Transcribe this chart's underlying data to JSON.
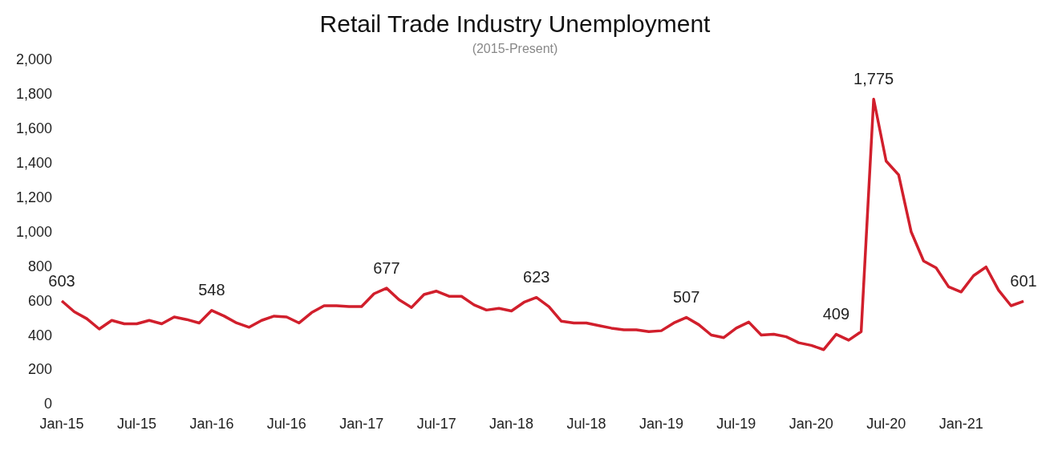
{
  "chart_data": {
    "type": "line",
    "title": "Retail Trade Industry Unemployment",
    "subtitle": "(2015-Present)",
    "categories": [
      "Jan-15",
      null,
      null,
      null,
      null,
      null,
      "Jul-15",
      null,
      null,
      null,
      null,
      null,
      "Jan-16",
      null,
      null,
      null,
      null,
      null,
      "Jul-16",
      null,
      null,
      null,
      null,
      null,
      "Jan-17",
      null,
      null,
      null,
      null,
      null,
      "Jul-17",
      null,
      null,
      null,
      null,
      null,
      "Jan-18",
      null,
      null,
      null,
      null,
      null,
      "Jul-18",
      null,
      null,
      null,
      null,
      null,
      "Jan-19",
      null,
      null,
      null,
      null,
      null,
      "Jul-19",
      null,
      null,
      null,
      null,
      null,
      "Jan-20",
      null,
      null,
      null,
      null,
      null,
      "Jul-20",
      null,
      null,
      null,
      null,
      null,
      "Jan-21",
      null,
      null,
      null,
      null,
      null
    ],
    "ylim": [
      0,
      2000
    ],
    "yticks": [
      {
        "value": 0,
        "label": "0"
      },
      {
        "value": 200,
        "label": "200"
      },
      {
        "value": 400,
        "label": "400"
      },
      {
        "value": 600,
        "label": "600"
      },
      {
        "value": 800,
        "label": "800"
      },
      {
        "value": 1000,
        "label": "1,000"
      },
      {
        "value": 1200,
        "label": "1,200"
      },
      {
        "value": 1400,
        "label": "1,400"
      },
      {
        "value": 1600,
        "label": "1,600"
      },
      {
        "value": 1800,
        "label": "1,800"
      },
      {
        "value": 2000,
        "label": "2,000"
      }
    ],
    "series": [
      {
        "color": "#d11f2c",
        "values": [
          603,
          540,
          500,
          440,
          490,
          470,
          470,
          490,
          470,
          510,
          495,
          475,
          548,
          515,
          475,
          450,
          490,
          515,
          510,
          475,
          535,
          575,
          575,
          570,
          570,
          645,
          677,
          610,
          565,
          640,
          660,
          630,
          630,
          580,
          550,
          560,
          545,
          595,
          623,
          570,
          485,
          475,
          475,
          460,
          445,
          435,
          435,
          425,
          430,
          475,
          507,
          465,
          405,
          390,
          445,
          480,
          405,
          410,
          395,
          360,
          345,
          320,
          409,
          375,
          425,
          1775,
          1415,
          1335,
          1005,
          835,
          795,
          685,
          655,
          750,
          800,
          665,
          575,
          601
        ],
        "value_labels": [
          "603",
          null,
          null,
          null,
          null,
          null,
          null,
          null,
          null,
          null,
          null,
          null,
          "548",
          null,
          null,
          null,
          null,
          null,
          null,
          null,
          null,
          null,
          null,
          null,
          null,
          null,
          "677",
          null,
          null,
          null,
          null,
          null,
          null,
          null,
          null,
          null,
          null,
          null,
          "623",
          null,
          null,
          null,
          null,
          null,
          null,
          null,
          null,
          null,
          null,
          null,
          "507",
          null,
          null,
          null,
          null,
          null,
          null,
          null,
          null,
          null,
          null,
          null,
          "409",
          null,
          null,
          "1,775",
          null,
          null,
          null,
          null,
          null,
          null,
          null,
          null,
          null,
          null,
          null,
          "601"
        ]
      }
    ]
  }
}
